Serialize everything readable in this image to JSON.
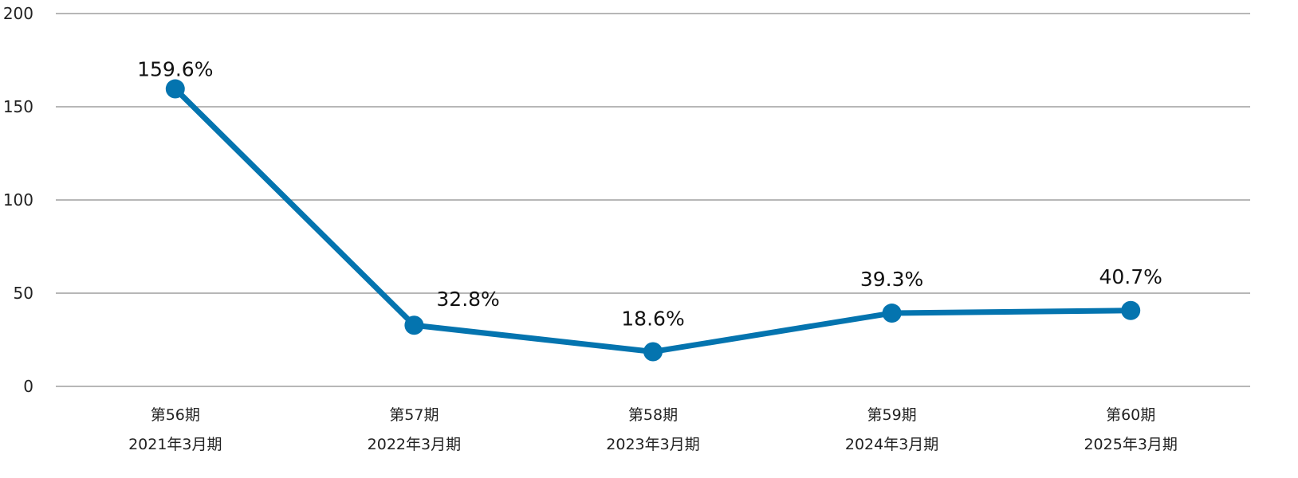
{
  "chart_data": {
    "type": "line",
    "title": "",
    "xlabel": "",
    "ylabel": "",
    "ylim": [
      0,
      200
    ],
    "yticks": [
      0,
      50,
      100,
      150,
      200
    ],
    "grid": true,
    "legend": null,
    "categories": [
      {
        "period": "第56期",
        "fiscal": "2021年3月期"
      },
      {
        "period": "第57期",
        "fiscal": "2022年3月期"
      },
      {
        "period": "第58期",
        "fiscal": "2023年3月期"
      },
      {
        "period": "第59期",
        "fiscal": "2024年3月期"
      },
      {
        "period": "第60期",
        "fiscal": "2025年3月期"
      }
    ],
    "series": [
      {
        "name": "",
        "color": "#0474AF",
        "values": [
          159.6,
          32.8,
          18.6,
          39.3,
          40.7
        ],
        "labels": [
          "159.6%",
          "32.8%",
          "18.6%",
          "39.3%",
          "40.7%"
        ]
      }
    ]
  },
  "colors": {
    "line": "#0474AF",
    "grid": "#8c8c8c",
    "text": "#222222"
  }
}
